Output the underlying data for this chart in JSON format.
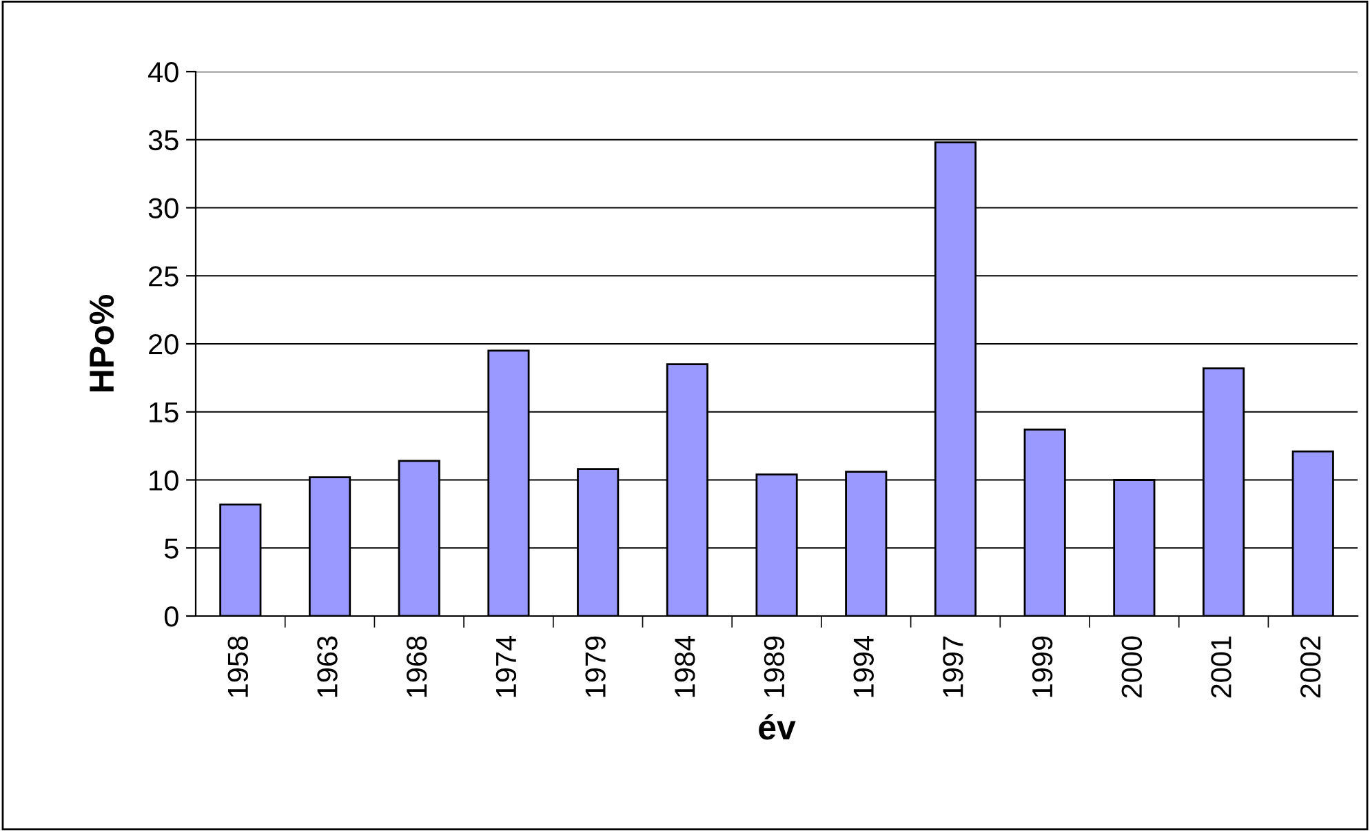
{
  "chart_data": {
    "type": "bar",
    "xlabel": "év",
    "ylabel": "HPo%",
    "categories": [
      "1958",
      "1963",
      "1968",
      "1974",
      "1979",
      "1984",
      "1989",
      "1994",
      "1997",
      "1999",
      "2000",
      "2001",
      "2002"
    ],
    "values": [
      8.2,
      10.2,
      11.4,
      19.5,
      10.8,
      18.5,
      10.4,
      10.6,
      34.8,
      13.7,
      10.0,
      18.2,
      12.1
    ],
    "color": "#9999ff",
    "ylim": [
      0,
      40
    ],
    "yticks": [
      0,
      5,
      10,
      15,
      20,
      25,
      30,
      35,
      40
    ],
    "grid": "y",
    "legend": false
  }
}
